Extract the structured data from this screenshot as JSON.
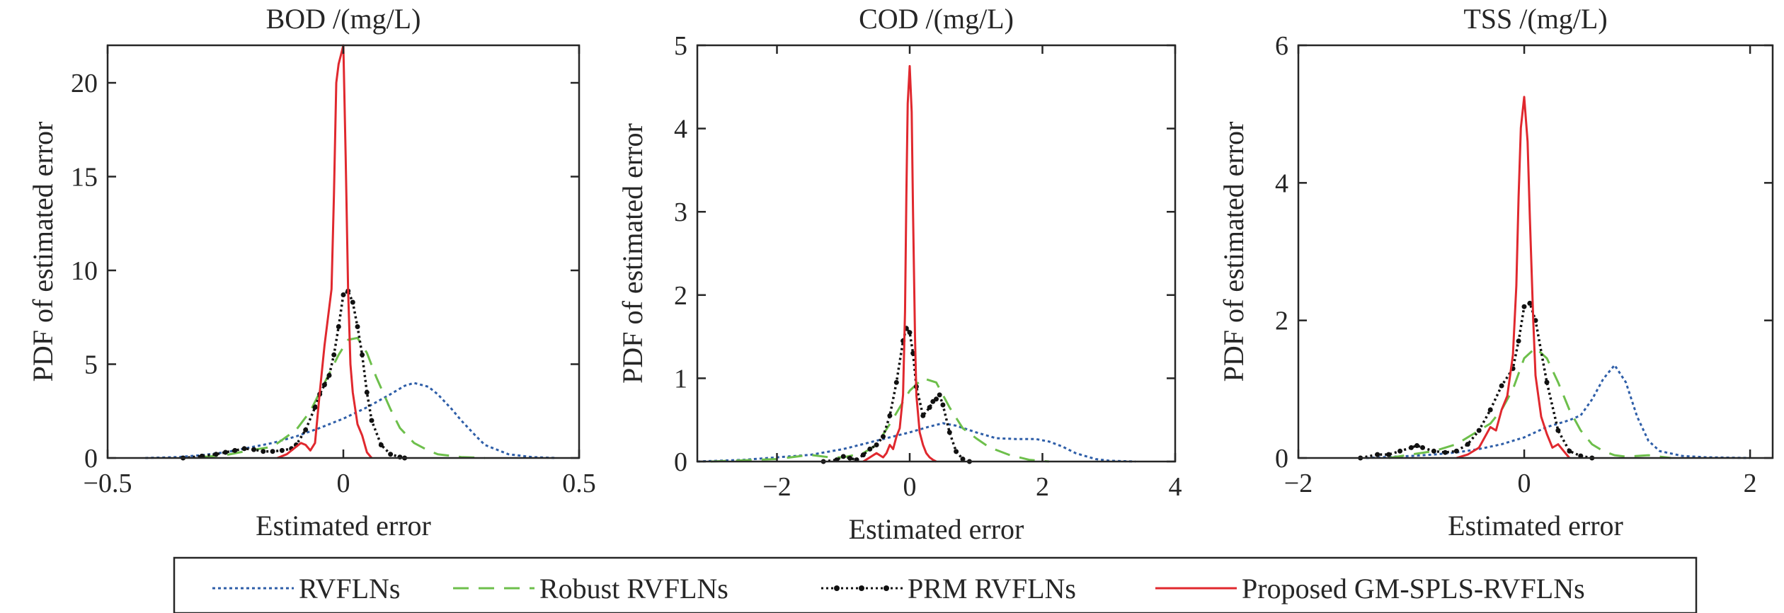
{
  "legend": {
    "entries": [
      {
        "key": "rvfl",
        "label": "RVFLNs"
      },
      {
        "key": "robust",
        "label": "Robust RVFLNs"
      },
      {
        "key": "prm",
        "label": "PRM RVFLNs"
      },
      {
        "key": "proposed",
        "label": "Proposed GM-SPLS-RVFLNs"
      }
    ],
    "placement": "bottom"
  },
  "colors": {
    "rvfl": "#2e5ea8",
    "robust": "#6dbf4b",
    "prm": "#111111",
    "proposed": "#e0282e"
  },
  "chart_data": [
    {
      "type": "line",
      "title": "BOD /(mg/L)",
      "xlabel": "Estimated error",
      "ylabel": "PDF of estimated error",
      "xlim": [
        -0.5,
        0.5
      ],
      "ylim": [
        0,
        22
      ],
      "xticks": [
        -0.5,
        0,
        0.5
      ],
      "xtick_labels": [
        "−0.5",
        "0",
        "0.5"
      ],
      "yticks": [
        0,
        5,
        10,
        15,
        20
      ],
      "ytick_labels": [
        "0",
        "5",
        "10",
        "15",
        "20"
      ],
      "grid": false,
      "series": [
        {
          "name": "RVFLNs",
          "key": "rvfl",
          "x": [
            -0.42,
            -0.35,
            -0.3,
            -0.25,
            -0.2,
            -0.15,
            -0.1,
            -0.05,
            0,
            0.05,
            0.1,
            0.13,
            0.15,
            0.18,
            0.2,
            0.23,
            0.25,
            0.28,
            0.3,
            0.35,
            0.4,
            0.45
          ],
          "y": [
            0,
            0.05,
            0.15,
            0.3,
            0.55,
            0.8,
            1.15,
            1.6,
            2.1,
            2.7,
            3.4,
            3.85,
            4.0,
            3.8,
            3.4,
            2.6,
            2.0,
            1.2,
            0.7,
            0.2,
            0.05,
            0.0
          ]
        },
        {
          "name": "Robust RVFLNs",
          "key": "robust",
          "x": [
            -0.3,
            -0.25,
            -0.2,
            -0.15,
            -0.1,
            -0.07,
            -0.05,
            -0.03,
            -0.01,
            0.01,
            0.03,
            0.05,
            0.07,
            0.1,
            0.12,
            0.15,
            0.18,
            0.2,
            0.25,
            0.3
          ],
          "y": [
            0.05,
            0.15,
            0.4,
            0.6,
            1.5,
            2.5,
            3.5,
            4.5,
            5.5,
            6.3,
            6.4,
            5.6,
            4.3,
            2.6,
            1.6,
            0.8,
            0.4,
            0.2,
            0.05,
            0
          ]
        },
        {
          "name": "PRM RVFLNs",
          "key": "prm",
          "x": [
            -0.34,
            -0.3,
            -0.27,
            -0.25,
            -0.23,
            -0.21,
            -0.19,
            -0.17,
            -0.15,
            -0.13,
            -0.11,
            -0.1,
            -0.08,
            -0.06,
            -0.05,
            -0.04,
            -0.03,
            -0.02,
            -0.01,
            0,
            0.01,
            0.02,
            0.03,
            0.04,
            0.05,
            0.06,
            0.08,
            0.1,
            0.12,
            0.13
          ],
          "y": [
            0,
            0.1,
            0.2,
            0.3,
            0.4,
            0.5,
            0.45,
            0.35,
            0.35,
            0.4,
            0.5,
            0.7,
            1.5,
            2.7,
            3.4,
            3.9,
            4.4,
            5.5,
            7.0,
            8.7,
            8.9,
            8.3,
            7.0,
            5.5,
            3.5,
            2.0,
            0.7,
            0.2,
            0.05,
            0
          ]
        },
        {
          "name": "Proposed GM-SPLS-RVFLNs",
          "key": "proposed",
          "x": [
            -0.14,
            -0.12,
            -0.1,
            -0.09,
            -0.08,
            -0.07,
            -0.06,
            -0.05,
            -0.04,
            -0.03,
            -0.025,
            -0.02,
            -0.015,
            -0.01,
            -0.005,
            0,
            0.005,
            0.01,
            0.015,
            0.02,
            0.03,
            0.04,
            0.05,
            0.06
          ],
          "y": [
            0,
            0.2,
            0.6,
            0.8,
            0.7,
            0.4,
            0.8,
            3.5,
            6.0,
            8.0,
            9.0,
            14.0,
            20.0,
            21.0,
            21.5,
            22.0,
            16.0,
            9.0,
            5.0,
            3.5,
            1.8,
            1.2,
            0.3,
            0
          ]
        }
      ]
    },
    {
      "type": "line",
      "title": "COD /(mg/L)",
      "xlabel": "Estimated error",
      "ylabel": "PDF of estimated error",
      "xlim": [
        -3.2,
        4
      ],
      "ylim": [
        0,
        5
      ],
      "xticks": [
        -2,
        0,
        2,
        4
      ],
      "xtick_labels": [
        "−2",
        "0",
        "2",
        "4"
      ],
      "yticks": [
        0,
        1,
        2,
        3,
        4,
        5
      ],
      "ytick_labels": [
        "0",
        "1",
        "2",
        "3",
        "4",
        "5"
      ],
      "grid": false,
      "series": [
        {
          "name": "RVFLNs",
          "key": "rvfl",
          "x": [
            -3.2,
            -2.5,
            -2.0,
            -1.5,
            -1.0,
            -0.5,
            0,
            0.3,
            0.5,
            0.7,
            1.0,
            1.3,
            1.6,
            1.9,
            2.1,
            2.3,
            2.5,
            2.8,
            3.0,
            3.4
          ],
          "y": [
            0,
            0.02,
            0.05,
            0.08,
            0.15,
            0.25,
            0.35,
            0.42,
            0.46,
            0.43,
            0.35,
            0.28,
            0.27,
            0.27,
            0.24,
            0.18,
            0.1,
            0.03,
            0.01,
            0
          ]
        },
        {
          "name": "Robust RVFLNs",
          "key": "robust",
          "x": [
            -3.0,
            -2.0,
            -1.5,
            -1.2,
            -1.0,
            -0.7,
            -0.5,
            -0.3,
            0,
            0.2,
            0.4,
            0.6,
            0.8,
            1.0,
            1.2,
            1.5,
            1.8,
            2.1
          ],
          "y": [
            0,
            0.03,
            0.08,
            0.05,
            0.05,
            0.1,
            0.2,
            0.45,
            0.85,
            1.0,
            0.95,
            0.65,
            0.4,
            0.28,
            0.17,
            0.08,
            0.02,
            0
          ]
        },
        {
          "name": "PRM RVFLNs",
          "key": "prm",
          "x": [
            -1.3,
            -1.1,
            -1.0,
            -0.9,
            -0.8,
            -0.7,
            -0.6,
            -0.5,
            -0.4,
            -0.3,
            -0.2,
            -0.1,
            -0.05,
            0,
            0.05,
            0.1,
            0.2,
            0.3,
            0.35,
            0.4,
            0.45,
            0.5,
            0.6,
            0.7,
            0.8,
            0.9
          ],
          "y": [
            0,
            0.02,
            0.06,
            0.04,
            0.02,
            0.08,
            0.15,
            0.2,
            0.3,
            0.55,
            0.95,
            1.45,
            1.6,
            1.55,
            1.3,
            0.9,
            0.55,
            0.65,
            0.72,
            0.75,
            0.8,
            0.68,
            0.35,
            0.12,
            0.03,
            0
          ]
        },
        {
          "name": "Proposed GM-SPLS-RVFLNs",
          "key": "proposed",
          "x": [
            -0.7,
            -0.6,
            -0.5,
            -0.4,
            -0.35,
            -0.3,
            -0.25,
            -0.2,
            -0.15,
            -0.1,
            -0.07,
            -0.05,
            -0.03,
            0,
            0.03,
            0.05,
            0.08,
            0.1,
            0.15,
            0.2,
            0.25,
            0.3,
            0.35,
            0.4
          ],
          "y": [
            0,
            0.05,
            0.1,
            0.05,
            0.1,
            0.2,
            0.15,
            0.3,
            0.4,
            0.8,
            1.8,
            3.2,
            4.3,
            4.75,
            4.2,
            3.0,
            1.5,
            0.8,
            0.35,
            0.2,
            0.1,
            0.05,
            0.02,
            0
          ]
        }
      ]
    },
    {
      "type": "line",
      "title": "TSS /(mg/L)",
      "xlabel": "Estimated error",
      "ylabel": "PDF of estimated error",
      "xlim": [
        -2,
        2.2
      ],
      "ylim": [
        0,
        6
      ],
      "xticks": [
        -2,
        0,
        2
      ],
      "xtick_labels": [
        "−2",
        "0",
        "2"
      ],
      "yticks": [
        0,
        2,
        4,
        6
      ],
      "ytick_labels": [
        "0",
        "2",
        "4",
        "6"
      ],
      "grid": false,
      "series": [
        {
          "name": "RVFLNs",
          "key": "rvfl",
          "x": [
            -1.4,
            -1.0,
            -0.8,
            -0.6,
            -0.4,
            -0.2,
            0,
            0.2,
            0.4,
            0.5,
            0.6,
            0.7,
            0.8,
            0.9,
            1.0,
            1.1,
            1.2,
            1.4,
            1.6,
            2.0
          ],
          "y": [
            0,
            0.03,
            0.05,
            0.08,
            0.13,
            0.2,
            0.3,
            0.45,
            0.55,
            0.62,
            0.85,
            1.15,
            1.35,
            1.1,
            0.6,
            0.25,
            0.1,
            0.03,
            0.01,
            0
          ]
        },
        {
          "name": "Robust RVFLNs",
          "key": "robust",
          "x": [
            -1.2,
            -1.0,
            -0.8,
            -0.6,
            -0.4,
            -0.3,
            -0.2,
            -0.1,
            0,
            0.1,
            0.2,
            0.3,
            0.4,
            0.5,
            0.6,
            0.7,
            0.8,
            0.9,
            1.1,
            1.3
          ],
          "y": [
            0,
            0.05,
            0.1,
            0.2,
            0.4,
            0.5,
            0.7,
            1.0,
            1.45,
            1.6,
            1.45,
            1.1,
            0.7,
            0.4,
            0.2,
            0.1,
            0.04,
            0.02,
            0.04,
            0
          ]
        },
        {
          "name": "PRM RVFLNs",
          "key": "prm",
          "x": [
            -1.45,
            -1.3,
            -1.2,
            -1.1,
            -1.0,
            -0.95,
            -0.9,
            -0.8,
            -0.7,
            -0.6,
            -0.5,
            -0.4,
            -0.3,
            -0.2,
            -0.1,
            -0.05,
            0,
            0.05,
            0.1,
            0.2,
            0.3,
            0.4,
            0.5,
            0.6
          ],
          "y": [
            0,
            0.05,
            0.05,
            0.1,
            0.15,
            0.18,
            0.15,
            0.1,
            0.08,
            0.1,
            0.2,
            0.4,
            0.7,
            1.05,
            1.3,
            1.7,
            2.2,
            2.25,
            2.0,
            1.1,
            0.4,
            0.1,
            0.03,
            0
          ]
        },
        {
          "name": "Proposed GM-SPLS-RVFLNs",
          "key": "proposed",
          "x": [
            -0.6,
            -0.5,
            -0.4,
            -0.3,
            -0.25,
            -0.2,
            -0.15,
            -0.1,
            -0.07,
            -0.05,
            -0.03,
            0,
            0.03,
            0.05,
            0.08,
            0.1,
            0.15,
            0.2,
            0.25,
            0.3,
            0.4
          ],
          "y": [
            0,
            0.05,
            0.15,
            0.45,
            0.4,
            0.7,
            0.9,
            1.5,
            2.5,
            3.8,
            4.8,
            5.25,
            4.6,
            3.5,
            2.0,
            1.2,
            0.6,
            0.35,
            0.15,
            0.2,
            0
          ]
        }
      ]
    }
  ]
}
